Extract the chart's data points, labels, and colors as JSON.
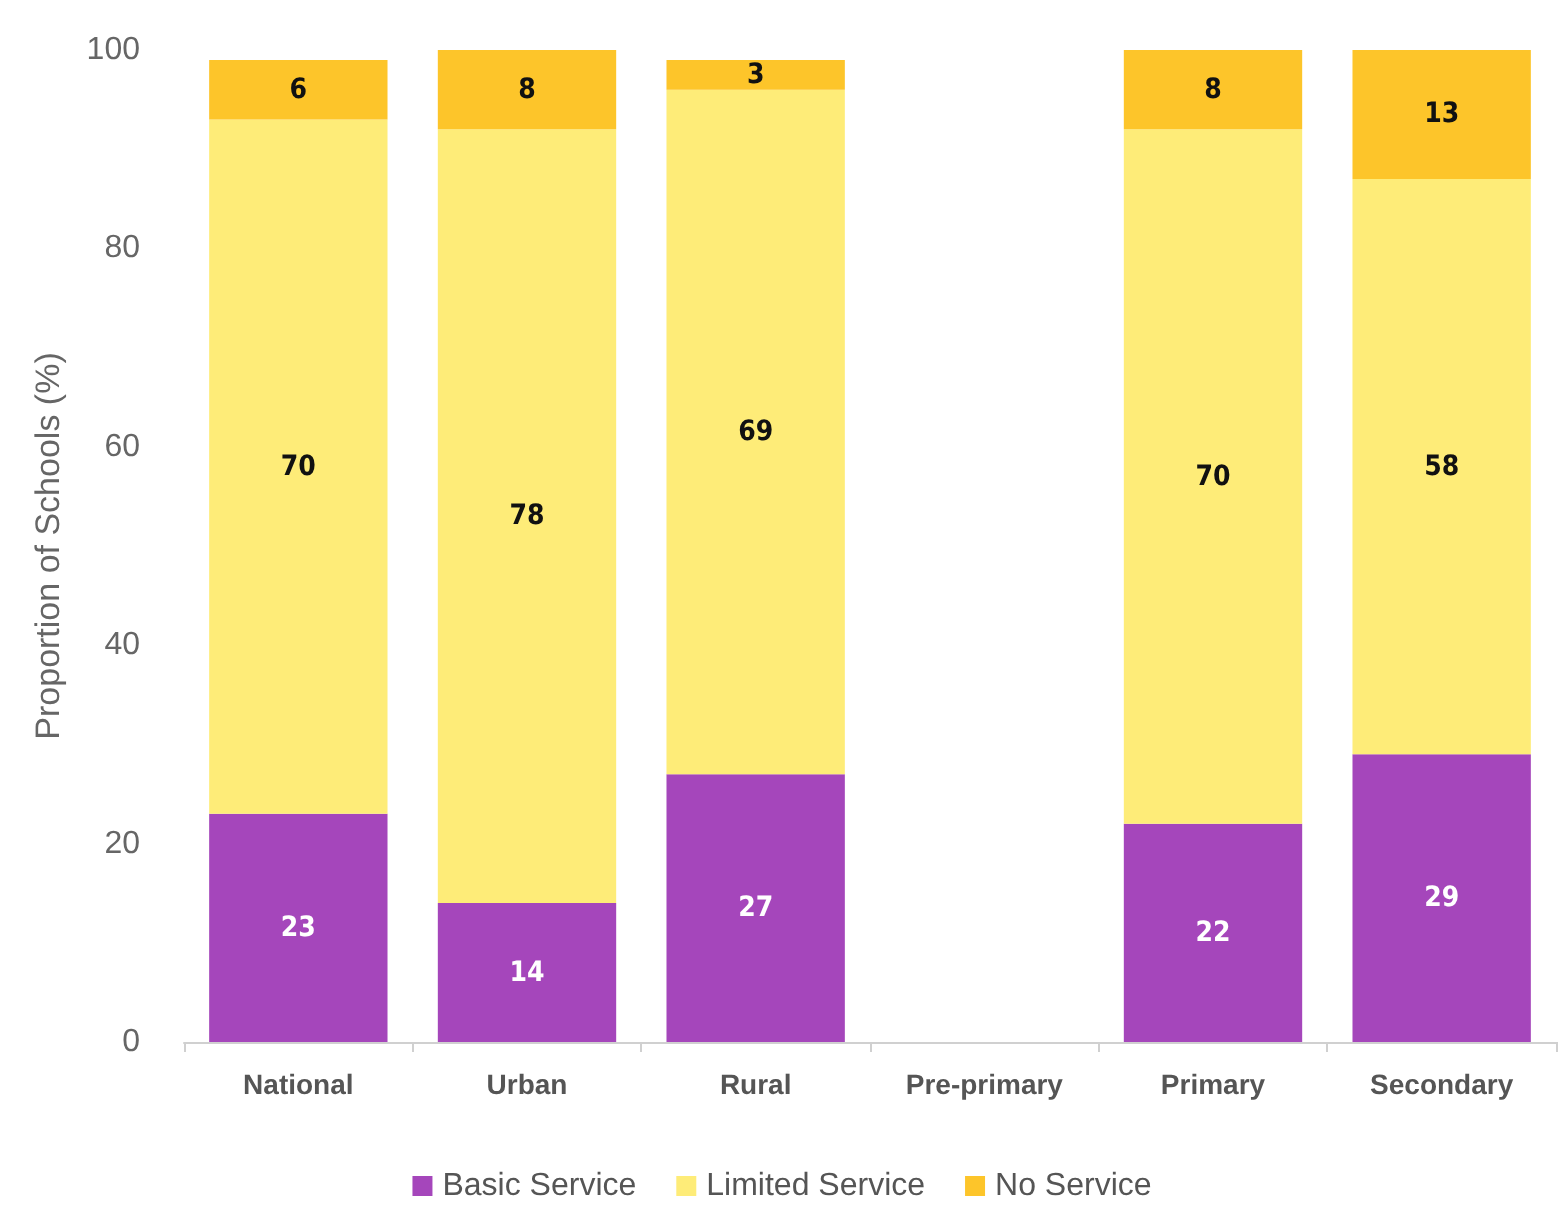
{
  "chart_data": {
    "type": "bar",
    "ylabel": "Proportion of Schools (%)",
    "stacked": true,
    "categories": [
      "National",
      "Urban",
      "Rural",
      "Pre-primary",
      "Primary",
      "Secondary"
    ],
    "series": [
      {
        "name": "Basic Service",
        "color": "#a546bb",
        "values": [
          23,
          14,
          27,
          null,
          22,
          29
        ]
      },
      {
        "name": "Limited Service",
        "color": "#feec78",
        "values": [
          70,
          78,
          69,
          null,
          70,
          58
        ]
      },
      {
        "name": "No Service",
        "color": "#fdc52a",
        "values": [
          6,
          8,
          3,
          null,
          8,
          13
        ]
      }
    ],
    "ylim": [
      0,
      100
    ],
    "yticks": [
      0,
      20,
      40,
      60,
      80,
      100
    ],
    "grid": false,
    "legend": "bottom",
    "data_labels": true
  }
}
